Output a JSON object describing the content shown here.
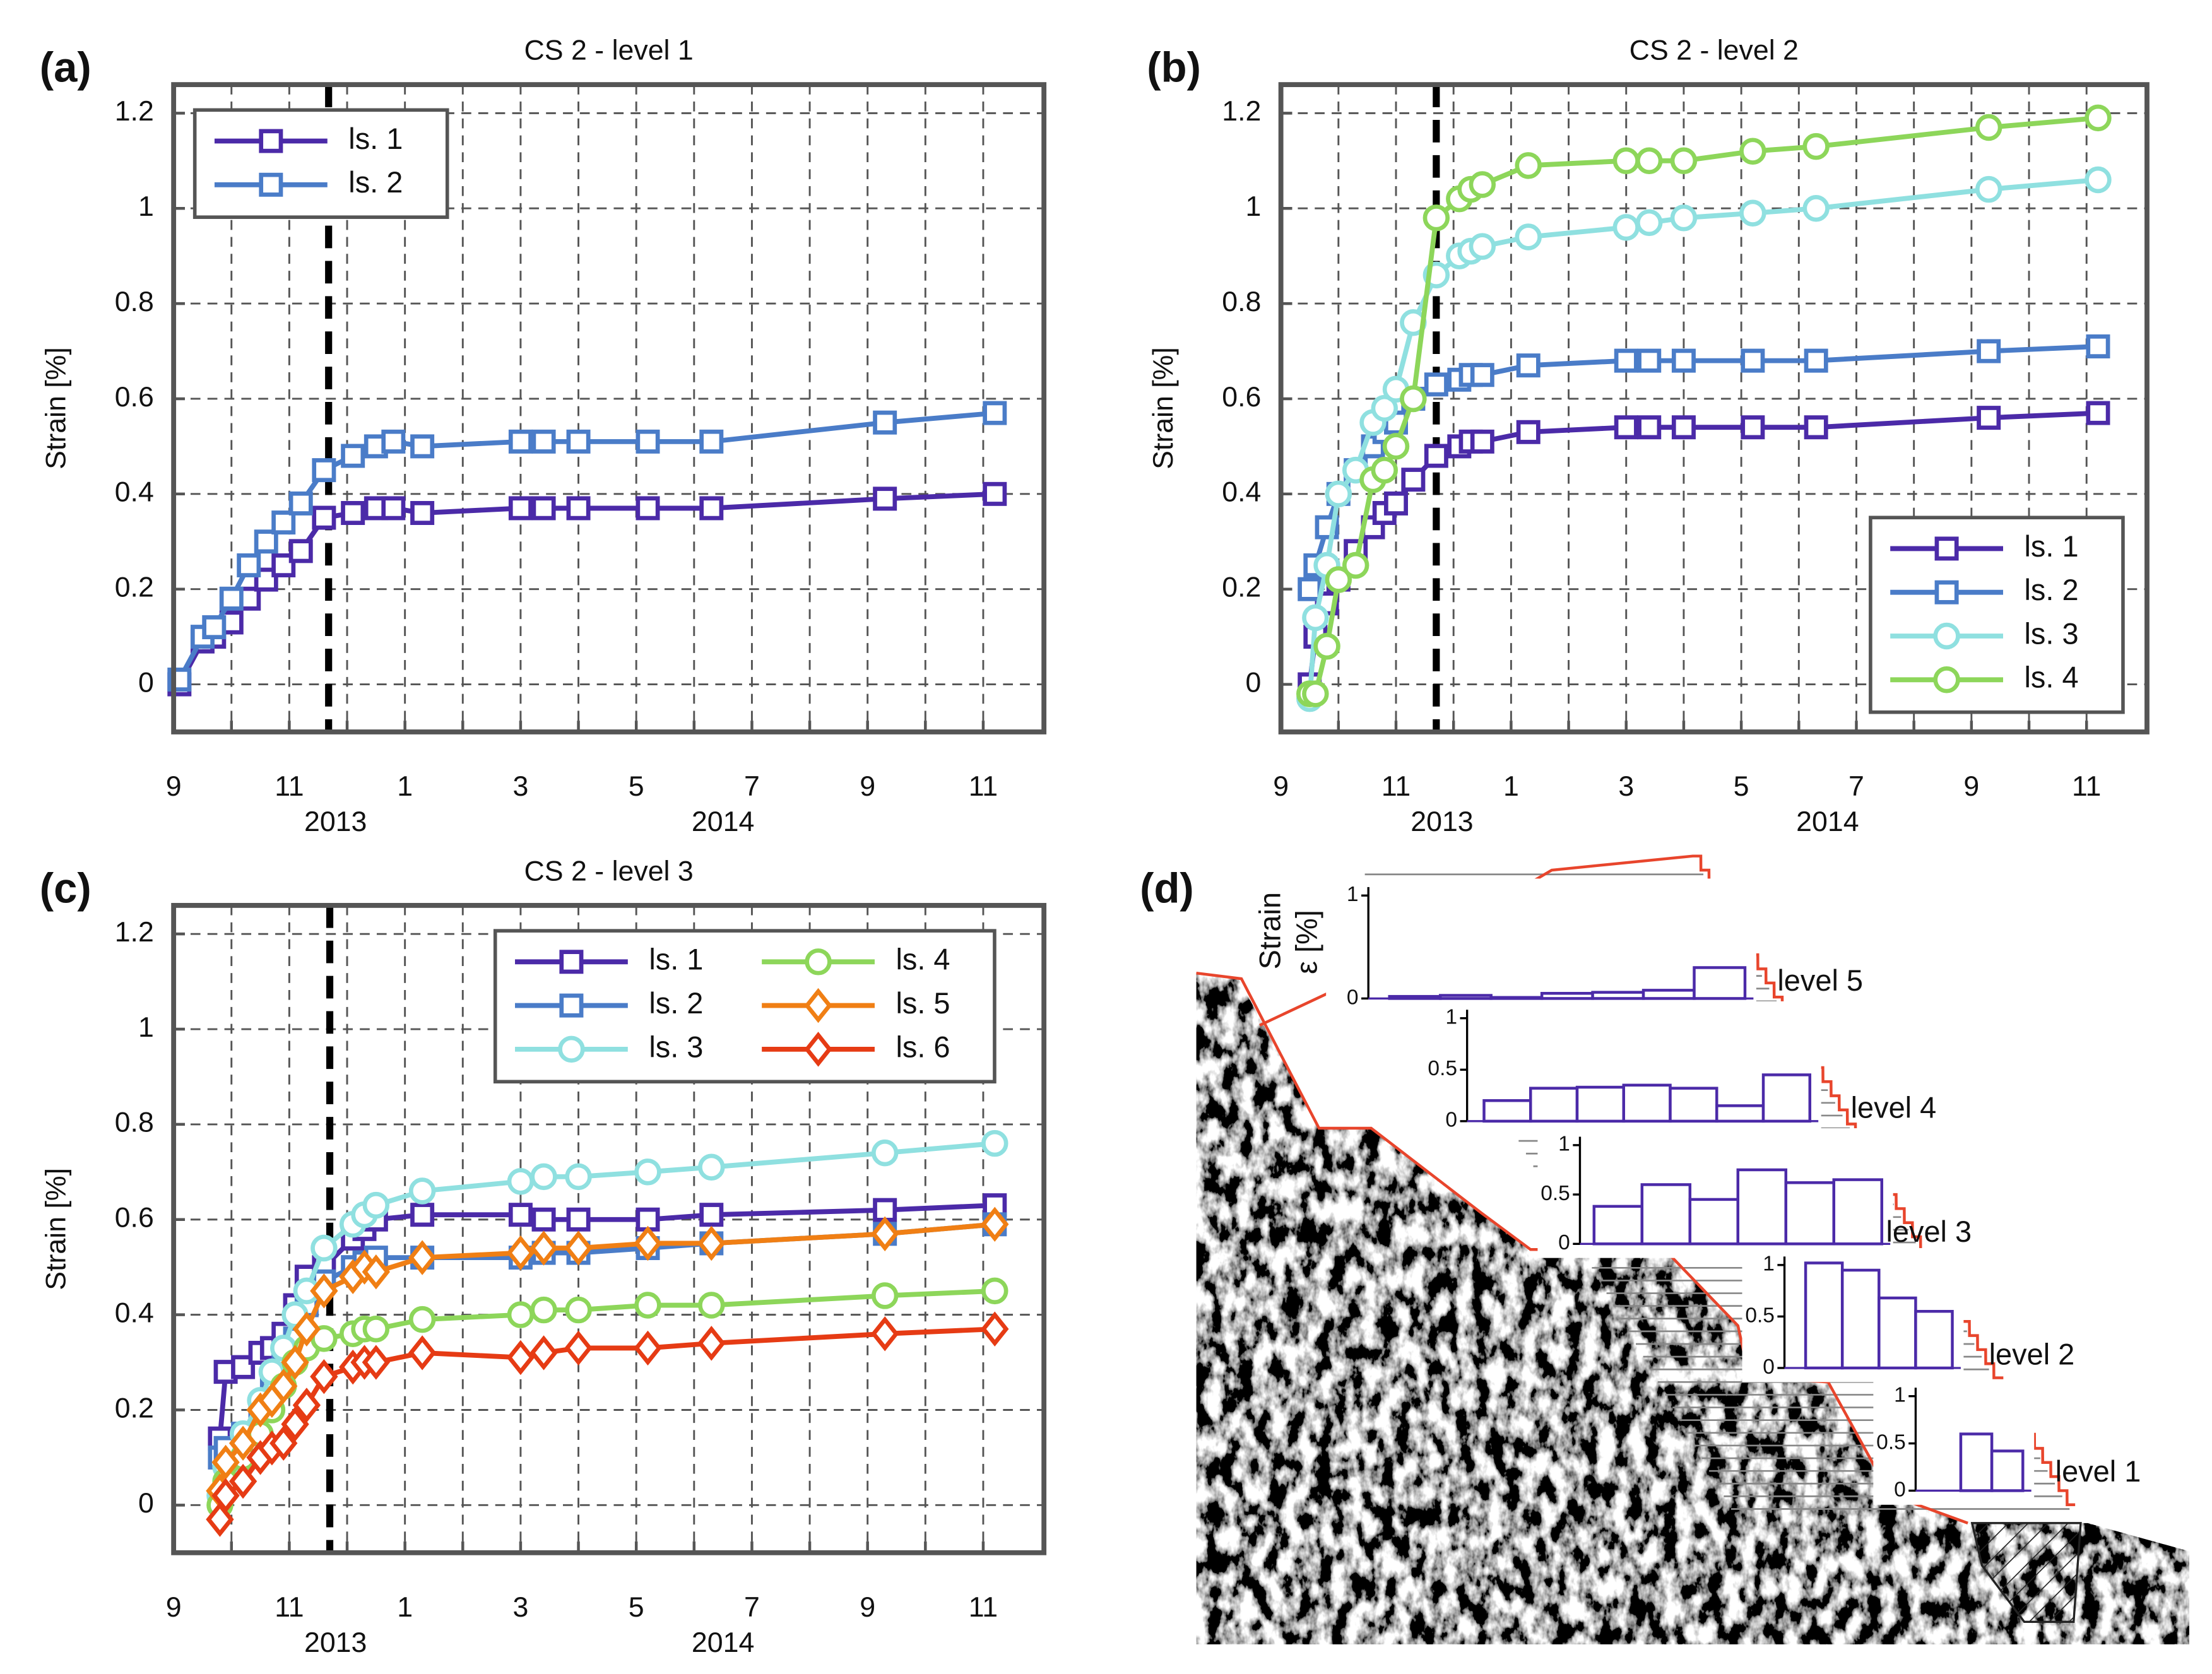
{
  "chart_data": [
    {
      "type": "line",
      "label": "(a)",
      "title": "CS 2 - level 1",
      "ylabel": "Strain [%]",
      "x": [
        9.1,
        9.5,
        9.7,
        10.0,
        10.3,
        10.6,
        10.9,
        11.2,
        11.6,
        12.1,
        12.5,
        12.8,
        13.3,
        15.0,
        15.4,
        16.0,
        17.2,
        18.3,
        21.3,
        23.2
      ],
      "series": [
        {
          "name": "ls. 1",
          "color": "#4b2aa8",
          "marker": "square",
          "values": [
            0.0,
            0.09,
            0.1,
            0.13,
            0.18,
            0.22,
            0.25,
            0.28,
            0.35,
            0.36,
            0.37,
            0.37,
            0.36,
            0.37,
            0.37,
            0.37,
            0.37,
            0.37,
            0.39,
            0.4
          ]
        },
        {
          "name": "ls. 2",
          "color": "#4a7cc8",
          "marker": "square",
          "values": [
            0.01,
            0.1,
            0.12,
            0.18,
            0.25,
            0.3,
            0.34,
            0.38,
            0.45,
            0.48,
            0.5,
            0.51,
            0.5,
            0.51,
            0.51,
            0.51,
            0.51,
            0.51,
            0.55,
            0.57
          ]
        }
      ],
      "xlim": [
        9,
        24.05
      ],
      "xticks": [
        9,
        11,
        {
          "value": 13,
          "label": "1"
        },
        {
          "value": 15,
          "label": "3"
        },
        {
          "value": 17,
          "label": "5"
        },
        {
          "value": 19,
          "label": "7"
        },
        {
          "value": 21,
          "label": "9"
        },
        {
          "value": 23,
          "label": "11"
        }
      ],
      "xminorticks": [
        10,
        12,
        14,
        16,
        18,
        20,
        22
      ],
      "year_labels": [
        {
          "value": 11.8,
          "label": "2013"
        },
        {
          "value": 18.5,
          "label": "2014"
        }
      ],
      "vline": 11.68,
      "ylim": [
        -0.1,
        1.26
      ],
      "yticks": [
        0,
        0.2,
        0.4,
        0.6,
        0.8,
        1,
        1.2
      ],
      "grid": true,
      "legend": {
        "position": "upper left",
        "columns": 1
      }
    },
    {
      "type": "line",
      "label": "(b)",
      "title": "CS 2 - level 2",
      "ylabel": "Strain [%]",
      "x": [
        9.5,
        9.6,
        9.8,
        10.0,
        10.3,
        10.6,
        10.8,
        11.0,
        11.3,
        11.7,
        12.1,
        12.3,
        12.5,
        13.3,
        15.0,
        15.4,
        16.0,
        17.2,
        18.3,
        21.3,
        23.2
      ],
      "series": [
        {
          "name": "ls. 1",
          "color": "#4b2aa8",
          "marker": "square",
          "values": [
            0.0,
            0.1,
            0.17,
            0.22,
            0.28,
            0.33,
            0.36,
            0.38,
            0.43,
            0.48,
            0.5,
            0.51,
            0.51,
            0.53,
            0.54,
            0.54,
            0.54,
            0.54,
            0.54,
            0.56,
            0.57
          ]
        },
        {
          "name": "ls. 2",
          "color": "#4a7cc8",
          "marker": "square",
          "values": [
            0.2,
            0.25,
            0.33,
            0.4,
            0.45,
            0.5,
            0.53,
            0.55,
            0.6,
            0.63,
            0.64,
            0.65,
            0.65,
            0.67,
            0.68,
            0.68,
            0.68,
            0.68,
            0.68,
            0.7,
            0.71
          ]
        },
        {
          "name": "ls. 3",
          "color": "#8fe0e0",
          "marker": "circle",
          "values": [
            -0.03,
            0.14,
            0.25,
            0.4,
            0.45,
            0.55,
            0.58,
            0.62,
            0.76,
            0.86,
            0.9,
            0.91,
            0.92,
            0.94,
            0.96,
            0.97,
            0.98,
            0.99,
            1.0,
            1.04,
            1.06
          ]
        },
        {
          "name": "ls. 4",
          "color": "#8dd65a",
          "marker": "circle",
          "values": [
            -0.02,
            -0.02,
            0.08,
            0.22,
            0.25,
            0.43,
            0.45,
            0.5,
            0.6,
            0.98,
            1.02,
            1.04,
            1.05,
            1.09,
            1.1,
            1.1,
            1.1,
            1.12,
            1.13,
            1.17,
            1.19
          ]
        }
      ],
      "xlim": [
        9,
        24.05
      ],
      "xticks": [
        9,
        11,
        {
          "value": 13,
          "label": "1"
        },
        {
          "value": 15,
          "label": "3"
        },
        {
          "value": 17,
          "label": "5"
        },
        {
          "value": 19,
          "label": "7"
        },
        {
          "value": 21,
          "label": "9"
        },
        {
          "value": 23,
          "label": "11"
        }
      ],
      "xminorticks": [
        10,
        12,
        14,
        16,
        18,
        20,
        22
      ],
      "year_labels": [
        {
          "value": 11.8,
          "label": "2013"
        },
        {
          "value": 18.5,
          "label": "2014"
        }
      ],
      "vline": 11.7,
      "ylim": [
        -0.1,
        1.26
      ],
      "yticks": [
        0,
        0.2,
        0.4,
        0.6,
        0.8,
        1,
        1.2
      ],
      "grid": true,
      "legend": {
        "position": "lower right",
        "columns": 1
      }
    },
    {
      "type": "line",
      "label": "(c)",
      "title": "CS 2 - level 3",
      "ylabel": "Strain [%]",
      "x": [
        9.8,
        9.9,
        10.2,
        10.5,
        10.7,
        10.9,
        11.1,
        11.3,
        11.6,
        12.1,
        12.3,
        12.5,
        13.3,
        15.0,
        15.4,
        16.0,
        17.2,
        18.3,
        21.3,
        23.2
      ],
      "series": [
        {
          "name": "ls. 1",
          "color": "#4b2aa8",
          "marker": "square",
          "values": [
            0.14,
            0.28,
            0.29,
            0.32,
            0.33,
            0.36,
            0.42,
            0.48,
            0.5,
            0.56,
            0.58,
            0.6,
            0.61,
            0.61,
            0.6,
            0.6,
            0.6,
            0.61,
            0.62,
            0.63
          ]
        },
        {
          "name": "ls. 2",
          "color": "#4a7cc8",
          "marker": "square",
          "values": [
            0.1,
            0.12,
            0.15,
            0.2,
            0.25,
            0.3,
            0.35,
            0.42,
            0.47,
            0.5,
            0.51,
            0.52,
            0.52,
            0.52,
            0.53,
            0.53,
            0.54,
            0.55,
            0.57,
            0.59
          ]
        },
        {
          "name": "ls. 3",
          "color": "#8fe0e0",
          "marker": "circle",
          "values": [
            0.02,
            0.08,
            0.15,
            0.22,
            0.28,
            0.33,
            0.4,
            0.45,
            0.54,
            0.59,
            0.61,
            0.63,
            0.66,
            0.68,
            0.69,
            0.69,
            0.7,
            0.71,
            0.74,
            0.76
          ]
        },
        {
          "name": "ls. 4",
          "color": "#8dd65a",
          "marker": "circle",
          "values": [
            0.0,
            0.05,
            0.1,
            0.15,
            0.2,
            0.25,
            0.3,
            0.33,
            0.35,
            0.36,
            0.37,
            0.37,
            0.39,
            0.4,
            0.41,
            0.41,
            0.42,
            0.42,
            0.44,
            0.45
          ]
        },
        {
          "name": "ls. 5",
          "color": "#f07f14",
          "marker": "diamond",
          "values": [
            0.03,
            0.09,
            0.13,
            0.2,
            0.22,
            0.25,
            0.3,
            0.37,
            0.45,
            0.48,
            0.5,
            0.49,
            0.52,
            0.53,
            0.54,
            0.54,
            0.55,
            0.55,
            0.57,
            0.59
          ]
        },
        {
          "name": "ls. 6",
          "color": "#e63b14",
          "marker": "diamond",
          "values": [
            -0.03,
            0.02,
            0.05,
            0.1,
            0.12,
            0.13,
            0.17,
            0.21,
            0.27,
            0.29,
            0.3,
            0.3,
            0.32,
            0.31,
            0.32,
            0.33,
            0.33,
            0.34,
            0.36,
            0.37
          ]
        }
      ],
      "xlim": [
        9,
        24.05
      ],
      "xticks": [
        9,
        11,
        {
          "value": 13,
          "label": "1"
        },
        {
          "value": 15,
          "label": "3"
        },
        {
          "value": 17,
          "label": "5"
        },
        {
          "value": 19,
          "label": "7"
        },
        {
          "value": 21,
          "label": "9"
        },
        {
          "value": 23,
          "label": "11"
        }
      ],
      "xminorticks": [
        10,
        12,
        14,
        16,
        18,
        20,
        22
      ],
      "year_labels": [
        {
          "value": 11.8,
          "label": "2013"
        },
        {
          "value": 18.5,
          "label": "2014"
        }
      ],
      "vline": 11.7,
      "ylim": [
        -0.1,
        1.26
      ],
      "yticks": [
        0,
        0.2,
        0.4,
        0.6,
        0.8,
        1,
        1.2
      ],
      "grid": true,
      "legend": {
        "position": "upper right",
        "columns": 2
      }
    }
  ],
  "diagram": {
    "label": "(d)",
    "ylabel": [
      "Strain",
      "ε [%]"
    ],
    "color": "#4b2aa8",
    "levels": [
      {
        "name": "level 5",
        "values": [
          0.02,
          0.03,
          0.01,
          0.05,
          0.06,
          0.08,
          0.3
        ],
        "ylim": [
          0,
          1
        ],
        "yticks": [
          0,
          1
        ]
      },
      {
        "name": "level 4",
        "values": [
          0.2,
          0.32,
          0.33,
          0.35,
          0.32,
          0.15,
          0.45
        ],
        "ylim": [
          0,
          1
        ],
        "yticks": [
          0,
          0.5,
          1
        ]
      },
      {
        "name": "level 3",
        "values": [
          0.38,
          0.6,
          0.45,
          0.75,
          0.62,
          0.65
        ],
        "ylim": [
          0,
          1
        ],
        "yticks": [
          0,
          0.5,
          1
        ]
      },
      {
        "name": "level 2",
        "values": [
          1.02,
          0.95,
          0.68,
          0.55
        ],
        "ylim": [
          0,
          1
        ],
        "yticks": [
          0,
          0.5,
          1
        ]
      },
      {
        "name": "level 1",
        "values": [
          0.6,
          0.42
        ],
        "ylim": [
          0,
          1
        ],
        "yticks": [
          0,
          0.5,
          1
        ]
      }
    ]
  }
}
